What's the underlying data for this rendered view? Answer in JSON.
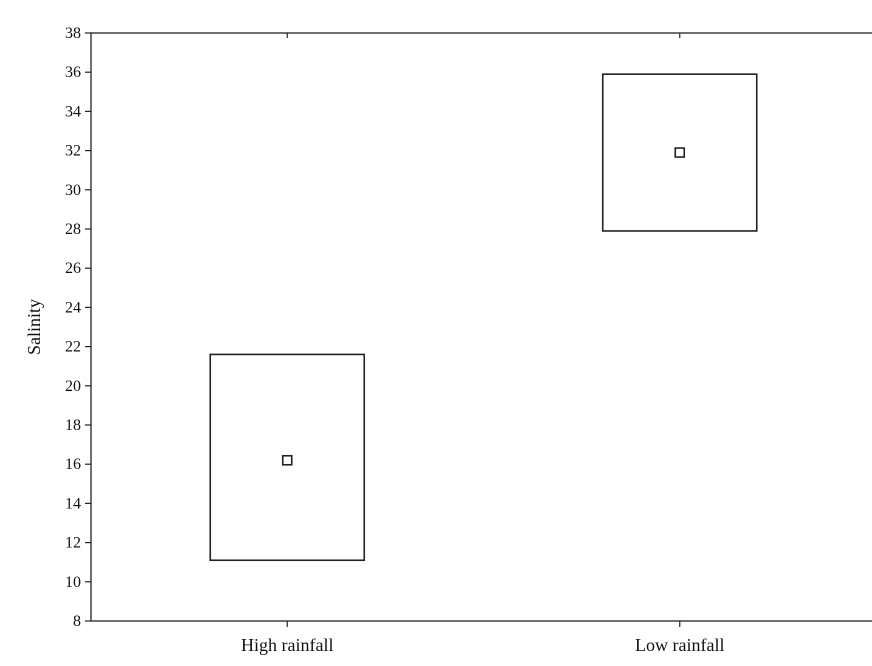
{
  "chart_data": {
    "type": "box",
    "ylabel": "Salinity",
    "xlabel": "",
    "title": "",
    "ylim": [
      8,
      38
    ],
    "yticks": [
      8,
      10,
      12,
      14,
      16,
      18,
      20,
      22,
      24,
      26,
      28,
      30,
      32,
      34,
      36,
      38
    ],
    "categories": [
      "High rainfall",
      "Low rainfall"
    ],
    "boxes": [
      {
        "category": "High rainfall",
        "center": 16.2,
        "low": 11.1,
        "high": 21.6
      },
      {
        "category": "Low rainfall",
        "center": 31.9,
        "low": 27.9,
        "high": 35.9
      }
    ],
    "grid": false,
    "legend": "none",
    "colors": {
      "line": "#222222",
      "background": "#ffffff"
    }
  }
}
